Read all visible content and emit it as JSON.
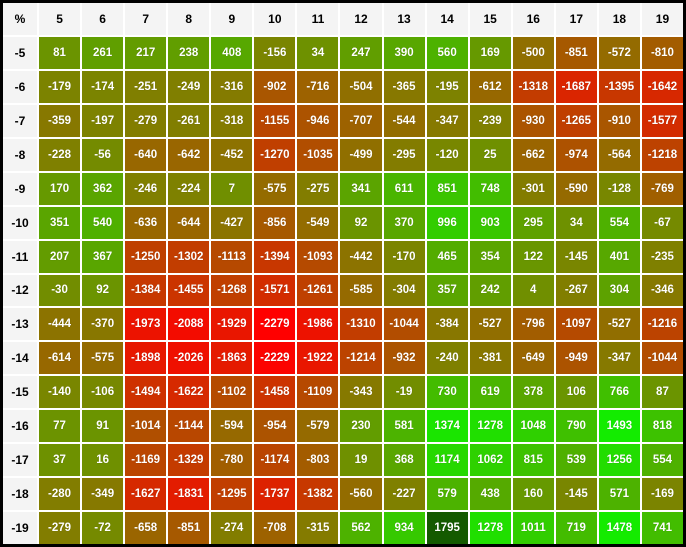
{
  "table": {
    "corner_label": "%"
  },
  "colors": {
    "scale_min_color": "#ff0000",
    "scale_max_color": "#00ff00",
    "max_highlight": "#145a00",
    "header_bg": "#f4f4f4",
    "header_text": "#000000",
    "cell_text": "#ffffff",
    "grid_line": "#ffffff",
    "outer_border": "#000000"
  },
  "chart_data": {
    "type": "heatmap",
    "title": "",
    "corner_label": "%",
    "x": [
      "5",
      "6",
      "7",
      "8",
      "9",
      "10",
      "11",
      "12",
      "13",
      "14",
      "15",
      "16",
      "17",
      "18",
      "19"
    ],
    "y": [
      "-5",
      "-6",
      "-7",
      "-8",
      "-9",
      "-10",
      "-11",
      "-12",
      "-13",
      "-14",
      "-15",
      "-16",
      "-17",
      "-18",
      "-19"
    ],
    "values": [
      [
        81,
        261,
        217,
        238,
        408,
        -156,
        34,
        247,
        390,
        560,
        169,
        -500,
        -851,
        -572,
        -810
      ],
      [
        -179,
        -174,
        -251,
        -249,
        -316,
        -902,
        -716,
        -504,
        -365,
        -195,
        -612,
        -1318,
        -1687,
        -1395,
        -1642
      ],
      [
        -359,
        -197,
        -279,
        -261,
        -318,
        -1155,
        -946,
        -707,
        -544,
        -347,
        -239,
        -930,
        -1265,
        -910,
        -1577
      ],
      [
        -228,
        -56,
        -640,
        -642,
        -452,
        -1270,
        -1035,
        -499,
        -295,
        -120,
        25,
        -662,
        -974,
        -564,
        -1218
      ],
      [
        170,
        362,
        -246,
        -224,
        7,
        -575,
        -275,
        341,
        611,
        851,
        748,
        -301,
        -590,
        -128,
        -769
      ],
      [
        351,
        540,
        -636,
        -644,
        -427,
        -856,
        -549,
        92,
        370,
        996,
        903,
        295,
        34,
        554,
        -67
      ],
      [
        207,
        367,
        -1250,
        -1302,
        -1113,
        -1394,
        -1093,
        -442,
        -170,
        465,
        354,
        122,
        -145,
        401,
        -235
      ],
      [
        -30,
        92,
        -1384,
        -1455,
        -1268,
        -1571,
        -1261,
        -585,
        -304,
        357,
        242,
        4,
        -267,
        304,
        -346
      ],
      [
        -444,
        -370,
        -1973,
        -2088,
        -1929,
        -2279,
        -1986,
        -1310,
        -1044,
        -384,
        -527,
        -796,
        -1097,
        -527,
        -1216
      ],
      [
        -614,
        -575,
        -1898,
        -2026,
        -1863,
        -2229,
        -1922,
        -1214,
        -932,
        -240,
        -381,
        -649,
        -949,
        -347,
        -1044
      ],
      [
        -140,
        -106,
        -1494,
        -1622,
        -1102,
        -1458,
        -1109,
        -343,
        -19,
        730,
        619,
        378,
        106,
        766,
        87
      ],
      [
        77,
        91,
        -1014,
        -1144,
        -594,
        -954,
        -579,
        230,
        581,
        1374,
        1278,
        1048,
        790,
        1493,
        818
      ],
      [
        37,
        16,
        -1169,
        -1329,
        -780,
        -1174,
        -803,
        19,
        368,
        1174,
        1062,
        815,
        539,
        1256,
        554
      ],
      [
        -280,
        -349,
        -1627,
        -1831,
        -1295,
        -1737,
        -1382,
        -560,
        -227,
        579,
        438,
        160,
        -145,
        571,
        -169
      ],
      [
        -279,
        -72,
        -658,
        -851,
        -274,
        -708,
        -315,
        562,
        934,
        1795,
        1278,
        1011,
        719,
        1478,
        741
      ]
    ],
    "value_min": -2279,
    "value_max": 1795,
    "colorscale": "linear red (min) to green (max)",
    "max_cell": {
      "row": "-19",
      "col": "14",
      "value": 1795
    },
    "min_cell": {
      "row": "-13",
      "col": "10",
      "value": -2279
    },
    "legend": "none",
    "grid": "2px white gaps between cells"
  }
}
